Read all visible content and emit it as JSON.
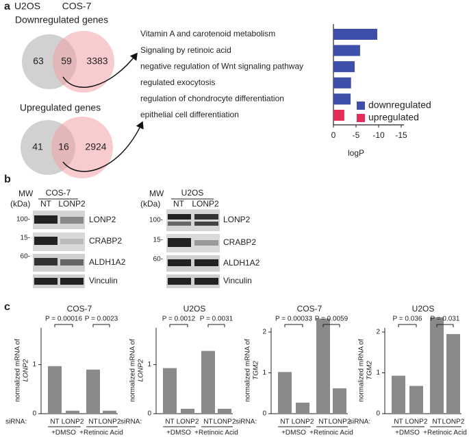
{
  "panels": {
    "a": {
      "label": "a",
      "cells": [
        "U2OS",
        "COS-7"
      ],
      "venns": [
        {
          "title": "Downregulated genes",
          "values": [
            "63",
            "59",
            "3383"
          ]
        },
        {
          "title": "Upregulated genes",
          "values": [
            "41",
            "16",
            "2924"
          ]
        }
      ]
    },
    "b": {
      "label": "b",
      "blots": [
        {
          "mw": "MW",
          "kda": "(kDa)",
          "cell": "COS-7",
          "lanes": [
            "NT",
            "LONP2"
          ],
          "markers": [
            "100-",
            "15-",
            "60-"
          ],
          "proteins": [
            "LONP2",
            "CRABP2",
            "ALDH1A2",
            "Vinculin"
          ]
        },
        {
          "mw": "MW",
          "kda": "(kDa)",
          "cell": "U2OS",
          "lanes": [
            "NT",
            "LONP2"
          ],
          "markers": [
            "100-",
            "15-",
            "60-"
          ],
          "proteins": [
            "LONP2",
            "CRABP2",
            "ALDH1A2",
            "Vinculin"
          ]
        }
      ]
    },
    "c": {
      "label": "c"
    }
  },
  "chart_data": [
    {
      "type": "barh",
      "categories": [
        "Vitamin A and carotenoid metabolism",
        "Signaling by retinoic acid",
        "negative regulation of Wnt signaling pathway",
        "regulated exocytosis",
        "regulation of chondrocyte differentiation",
        "epithelial cell differentiation"
      ],
      "series": [
        {
          "name": "downregulated",
          "color": "#3d4fa8",
          "values": [
            -9.7,
            -5.9,
            -4.7,
            -3.9,
            -3.8,
            null
          ]
        },
        {
          "name": "upregulated",
          "color": "#e52d5b",
          "values": [
            null,
            null,
            null,
            null,
            null,
            -2.4
          ]
        }
      ],
      "xlabel": "logP",
      "xlim": [
        0,
        -15
      ],
      "xticks": [
        0,
        -5,
        -10,
        -15
      ],
      "legend": "lower right"
    },
    {
      "type": "bar",
      "title": "COS-7",
      "ylabel": "normalized mRNA of",
      "ylabel_gene": "LONP2",
      "x_label": "siRNA:",
      "categories": [
        "NT",
        "LONP2",
        "NT",
        "LONP2"
      ],
      "groups": [
        "+DMSO",
        "+Retinoic Acid"
      ],
      "values": [
        0.97,
        0.06,
        0.9,
        0.06
      ],
      "color": "#8a8a8a",
      "p_labels": [
        "P = 0.00016",
        "P = 0.0023"
      ],
      "ylim": [
        0,
        1.75
      ],
      "yticks": [
        0,
        1
      ]
    },
    {
      "type": "bar",
      "title": "U2OS",
      "ylabel": "normalized mRNA of",
      "ylabel_gene": "LONP2",
      "x_label": "siRNA:",
      "categories": [
        "NT",
        "LONP2",
        "NT",
        "LONP2"
      ],
      "groups": [
        "+DMSO",
        "+Retinoic Acid"
      ],
      "values": [
        0.93,
        0.1,
        1.28,
        0.1
      ],
      "color": "#8a8a8a",
      "p_labels": [
        "P = 0.0012",
        "P = 0.0031"
      ],
      "ylim": [
        0,
        1.75
      ],
      "yticks": [
        0,
        1
      ]
    },
    {
      "type": "bar",
      "title": "COS-7",
      "ylabel": "normalized mRNA of",
      "ylabel_gene": "TGM2",
      "x_label": "siRNA:",
      "categories": [
        "NT",
        "LONP2",
        "NT",
        "LONP2"
      ],
      "groups": [
        "+DMSO",
        "+Retinoic Acid"
      ],
      "values": [
        1.02,
        0.27,
        2.33,
        0.62
      ],
      "color": "#8a8a8a",
      "p_labels": [
        "P = 0.00033",
        "P = 0.0059"
      ],
      "ylim": [
        0,
        2.1
      ],
      "yticks": [
        0,
        1,
        2
      ]
    },
    {
      "type": "bar",
      "title": "U2OS",
      "ylabel": "normalized mRNA of",
      "ylabel_gene": "TGM2",
      "x_label": "siRNA:",
      "categories": [
        "NT",
        "LONP2",
        "NT",
        "LONP2"
      ],
      "groups": [
        "+DMSO",
        "+Retinoic Acid"
      ],
      "values": [
        0.93,
        0.68,
        2.36,
        1.95
      ],
      "color": "#8a8a8a",
      "p_labels": [
        "P = 0.036",
        "P = 0.031"
      ],
      "ylim": [
        0,
        2.1
      ],
      "yticks": [
        0,
        1,
        2
      ]
    }
  ]
}
